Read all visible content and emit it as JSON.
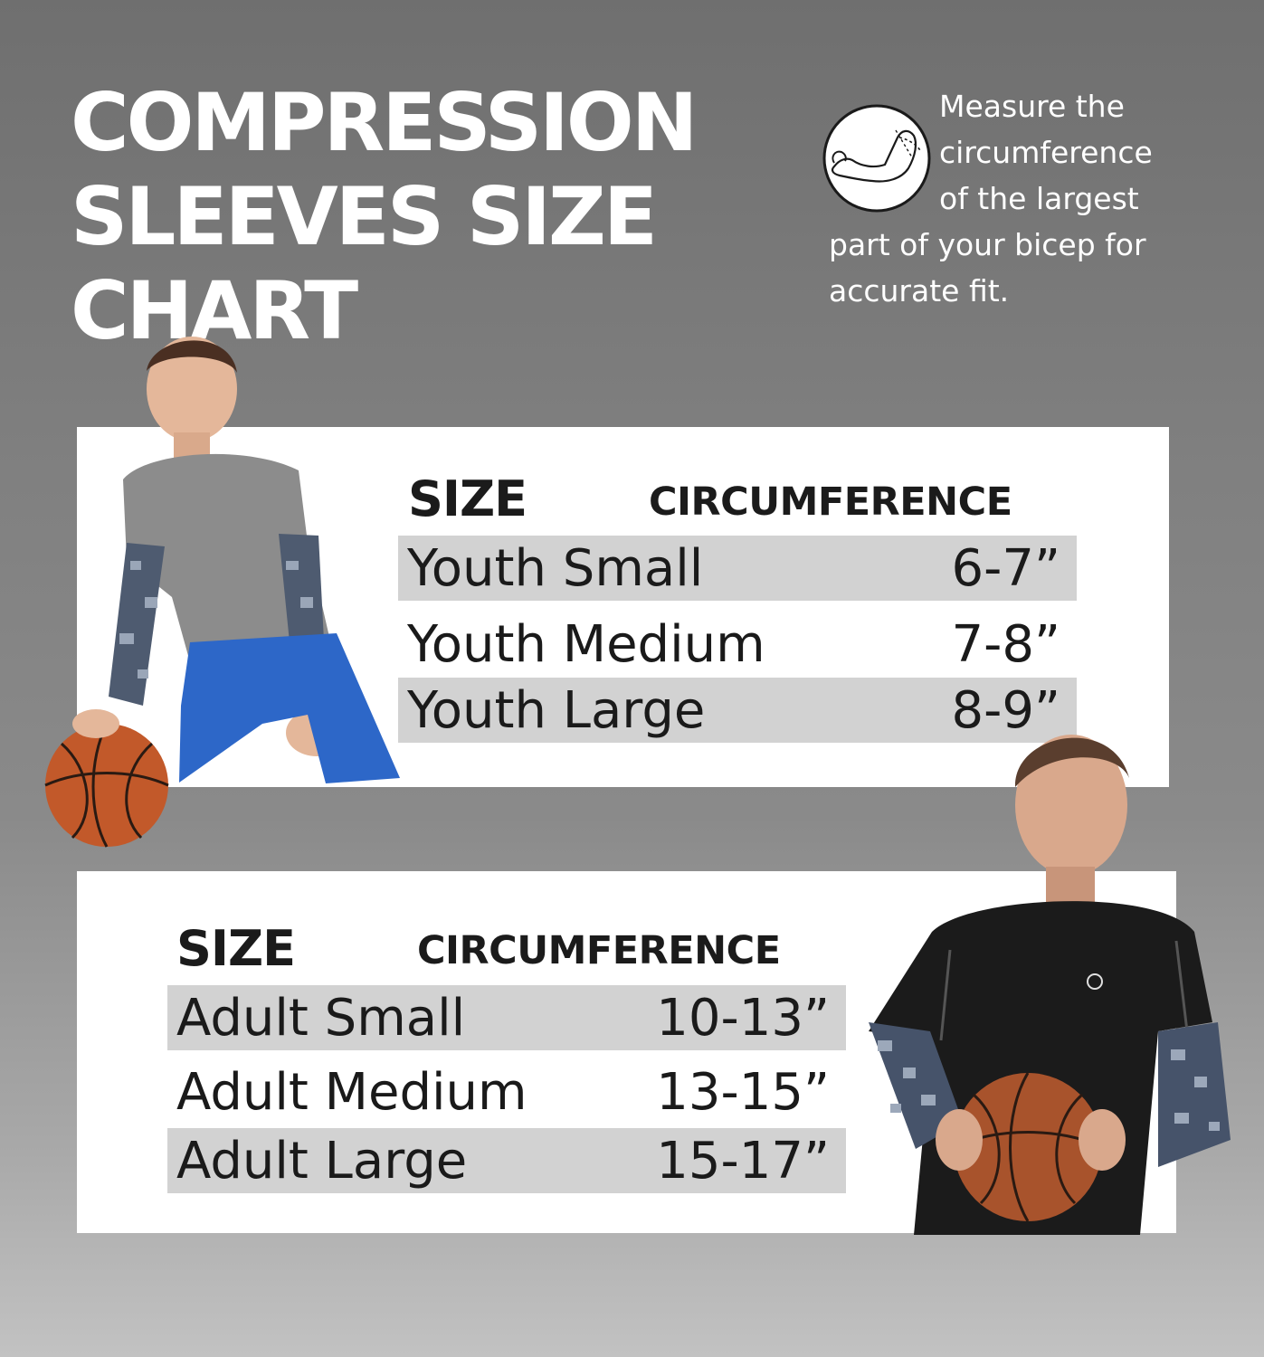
{
  "title": {
    "line1": "COMPRESSION",
    "line2": "SLEEVES SIZE",
    "line3": "CHART"
  },
  "measure_note": {
    "icon": "arm-measure-icon",
    "line1": "Measure the",
    "line2": "circumference",
    "line3": "of the largest",
    "line4": "part of your bicep for",
    "line5": "accurate fit."
  },
  "youth_table": {
    "header_size": "SIZE",
    "header_circumference": "CIRCUMFERENCE",
    "rows": [
      {
        "size": "Youth Small",
        "circumference": "6-7”"
      },
      {
        "size": "Youth Medium",
        "circumference": "7-8”"
      },
      {
        "size": "Youth Large",
        "circumference": "8-9”"
      }
    ]
  },
  "adult_table": {
    "header_size": "SIZE",
    "header_circumference": "CIRCUMFERENCE",
    "rows": [
      {
        "size": "Adult Small",
        "circumference": "10-13”"
      },
      {
        "size": "Adult Medium",
        "circumference": "13-15”"
      },
      {
        "size": "Adult Large",
        "circumference": "15-17”"
      }
    ]
  },
  "colors": {
    "background_top": "#6f6f6f",
    "background_bottom": "#c2c2c2",
    "panel": "#ffffff",
    "row_shade": "#d2d2d2",
    "text_dark": "#1a1a1a",
    "title_text": "#ffffff"
  }
}
